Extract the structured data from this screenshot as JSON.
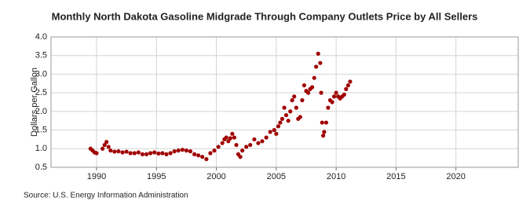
{
  "chart_data": {
    "type": "scatter",
    "title": "Monthly North Dakota Gasoline Midgrade Through Company Outlets Price by All Sellers",
    "y_label": "Dollars per Gallon",
    "source": "Source: U.S. Energy Information Administration",
    "color": "#a00000",
    "grid": true,
    "xlim": [
      1986.2,
      2025.2
    ],
    "xticks": [
      1990,
      1995,
      2000,
      2005,
      2010,
      2015,
      2020
    ],
    "ylim": [
      0.5,
      4.0
    ],
    "yticks": [
      0.5,
      {
        "value": 1.0,
        "label": "1.0"
      },
      1.5,
      {
        "value": 2.0,
        "label": "2.0"
      },
      2.5,
      {
        "value": 3.0,
        "label": "3.0"
      },
      3.5,
      {
        "value": 4.0,
        "label": "4.0"
      }
    ],
    "x": [
      1989.5,
      1989.67,
      1989.83,
      1990.0,
      1990.5,
      1990.67,
      1990.83,
      1991.0,
      1991.17,
      1991.5,
      1991.83,
      1992.17,
      1992.5,
      1992.83,
      1993.17,
      1993.5,
      1993.83,
      1994.17,
      1994.5,
      1994.83,
      1995.17,
      1995.5,
      1995.83,
      1996.17,
      1996.5,
      1996.83,
      1997.17,
      1997.5,
      1997.83,
      1998.17,
      1998.5,
      1998.83,
      1999.17,
      1999.5,
      1999.83,
      2000.17,
      2000.5,
      2000.67,
      2000.83,
      2001.0,
      2001.17,
      2001.33,
      2001.5,
      2001.67,
      2001.83,
      2002.0,
      2002.17,
      2002.5,
      2002.83,
      2003.17,
      2003.5,
      2003.83,
      2004.17,
      2004.5,
      2004.83,
      2005.0,
      2005.17,
      2005.33,
      2005.5,
      2005.67,
      2005.83,
      2006.0,
      2006.17,
      2006.33,
      2006.5,
      2006.67,
      2006.83,
      2007.0,
      2007.17,
      2007.33,
      2007.5,
      2007.67,
      2007.83,
      2008.0,
      2008.17,
      2008.33,
      2008.5,
      2008.67,
      2008.75,
      2008.83,
      2008.92,
      2009.0,
      2009.17,
      2009.33,
      2009.5,
      2009.67,
      2009.83,
      2010.0,
      2010.17,
      2010.33,
      2010.5,
      2010.67,
      2010.83,
      2011.0,
      2011.17
    ],
    "values": [
      1.0,
      0.95,
      0.9,
      0.88,
      1.0,
      1.1,
      1.18,
      1.05,
      0.95,
      0.92,
      0.93,
      0.9,
      0.92,
      0.88,
      0.88,
      0.9,
      0.85,
      0.85,
      0.88,
      0.9,
      0.87,
      0.88,
      0.85,
      0.88,
      0.93,
      0.95,
      0.97,
      0.95,
      0.93,
      0.85,
      0.82,
      0.78,
      0.72,
      0.88,
      0.95,
      1.05,
      1.15,
      1.25,
      1.3,
      1.2,
      1.28,
      1.4,
      1.3,
      1.1,
      0.85,
      0.78,
      0.95,
      1.05,
      1.1,
      1.25,
      1.15,
      1.2,
      1.3,
      1.45,
      1.5,
      1.4,
      1.6,
      1.7,
      1.8,
      2.1,
      1.9,
      1.75,
      2.0,
      2.3,
      2.4,
      2.1,
      1.8,
      1.85,
      2.3,
      2.7,
      2.55,
      2.5,
      2.6,
      2.65,
      2.9,
      3.2,
      3.55,
      3.3,
      2.5,
      1.7,
      1.35,
      1.45,
      1.7,
      2.1,
      2.3,
      2.25,
      2.4,
      2.5,
      2.4,
      2.35,
      2.4,
      2.45,
      2.6,
      2.7,
      2.8
    ]
  }
}
